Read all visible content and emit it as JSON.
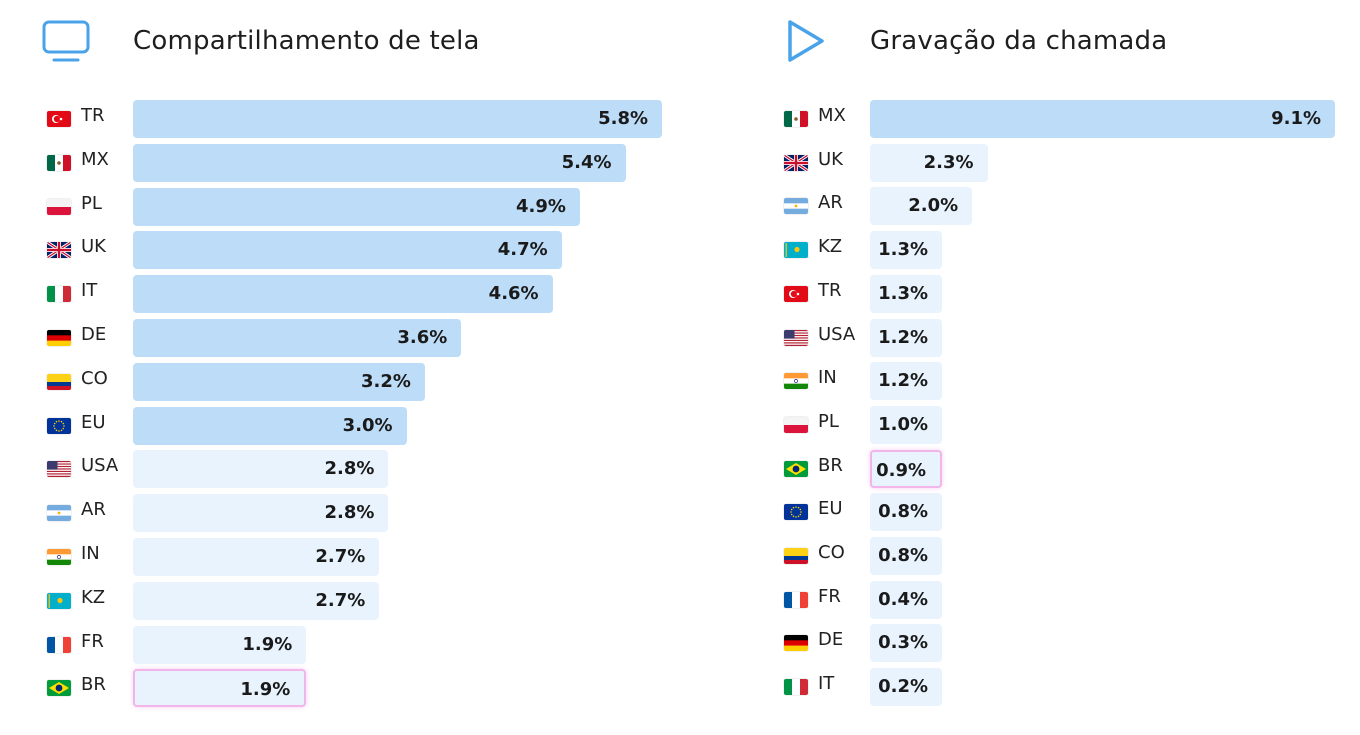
{
  "colors": {
    "bar_strong": "#bcdcf7",
    "bar_light": "#e8f3fd",
    "highlight_border": "#f2b5ea",
    "icon": "#4aa3e8"
  },
  "left": {
    "icon": "monitor-icon",
    "title": "Compartilhamento de tela"
  },
  "right": {
    "icon": "play-icon",
    "title": "Gravação da chamada"
  },
  "chart_data": [
    {
      "type": "bar",
      "orientation": "horizontal",
      "title": "Compartilhamento de tela",
      "unit": "%",
      "categories": [
        "TR",
        "MX",
        "PL",
        "UK",
        "IT",
        "DE",
        "CO",
        "EU",
        "USA",
        "AR",
        "IN",
        "KZ",
        "FR",
        "BR"
      ],
      "values": [
        5.8,
        5.4,
        4.9,
        4.7,
        4.6,
        3.6,
        3.2,
        3.0,
        2.8,
        2.8,
        2.7,
        2.7,
        1.9,
        1.9
      ],
      "labels": [
        "5.8%",
        "5.4%",
        "4.9%",
        "4.7%",
        "4.6%",
        "3.6%",
        "3.2%",
        "3.0%",
        "2.8%",
        "2.8%",
        "2.7%",
        "2.7%",
        "1.9%",
        "1.9%"
      ],
      "highlighted": [
        "BR"
      ]
    },
    {
      "type": "bar",
      "orientation": "horizontal",
      "title": "Gravação da chamada",
      "unit": "%",
      "categories": [
        "MX",
        "UK",
        "AR",
        "KZ",
        "TR",
        "USA",
        "IN",
        "PL",
        "BR",
        "EU",
        "CO",
        "FR",
        "DE",
        "IT"
      ],
      "values": [
        9.1,
        2.3,
        2.0,
        1.3,
        1.3,
        1.2,
        1.2,
        1.0,
        0.9,
        0.8,
        0.8,
        0.4,
        0.3,
        0.2
      ],
      "labels": [
        "9.1%",
        "2.3%",
        "2.0%",
        "1.3%",
        "1.3%",
        "1.2%",
        "1.2%",
        "1.0%",
        "0.9%",
        "0.8%",
        "0.8%",
        "0.4%",
        "0.3%",
        "0.2%"
      ],
      "highlighted": [
        "BR"
      ]
    }
  ]
}
